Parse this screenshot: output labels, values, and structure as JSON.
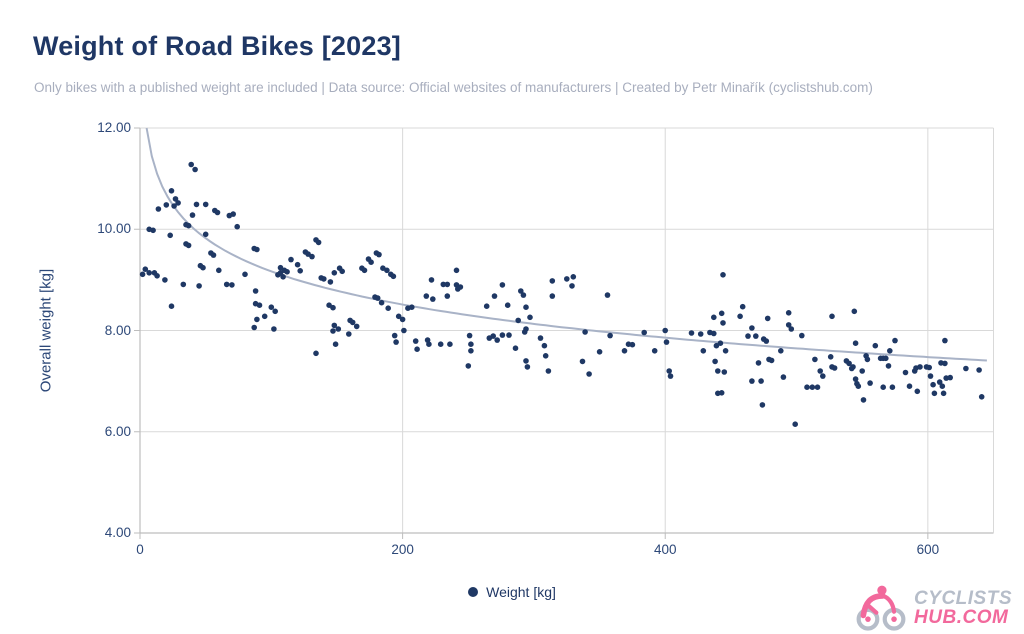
{
  "page": {
    "title": "Weight of Road Bikes [2023]",
    "subtitle": "Only bikes with a published weight are included | Data source: Official websites of manufacturers | Created by Petr Minařík (cyclistshub.com)"
  },
  "colors": {
    "title_navy": "#1f3765",
    "tick_label_navy": "#2d4878",
    "subtitle_gray": "#a8aebe",
    "point": "#1f3864",
    "trendline": "#a9b3c7",
    "gridline": "#d9d9d9",
    "axis_line": "#bdbdbd",
    "logo_gray": "#b6bdc9",
    "logo_pink": "#f2699c",
    "background": "#ffffff"
  },
  "branding": {
    "logo_line1": "CYCLISTS",
    "logo_line2": "HUB.COM"
  },
  "chart_data": {
    "type": "scatter",
    "title": "Weight of Road Bikes [2023]",
    "xlabel": "",
    "ylabel": "Overall weight [kg]",
    "xlim": [
      0,
      650
    ],
    "ylim": [
      4,
      12
    ],
    "grid": true,
    "x_ticks": [
      0,
      200,
      400,
      600
    ],
    "x_tick_labels": [
      "0",
      "200",
      "400",
      "600"
    ],
    "y_ticks": [
      12,
      10,
      8,
      6,
      4
    ],
    "y_tick_labels": [
      "12.00",
      "10.00",
      "8.00",
      "6.00",
      "4.00"
    ],
    "legend": {
      "label": "Weight [kg]",
      "position": "bottom-center"
    },
    "trendline": {
      "type": "logarithmic",
      "formula": "y = 13.52 - 0.945*ln(x)",
      "a": 13.52,
      "b": 0.945,
      "x_start": 5,
      "x_end": 648
    },
    "series": [
      {
        "name": "Weight [kg]",
        "points": [
          [
            7,
            10.0
          ],
          [
            10,
            9.98
          ],
          [
            14,
            10.4
          ],
          [
            20,
            10.48
          ],
          [
            24,
            10.76
          ],
          [
            27,
            10.6
          ],
          [
            29,
            10.52
          ],
          [
            26,
            10.46
          ],
          [
            23,
            9.88
          ],
          [
            2,
            9.11
          ],
          [
            4,
            9.21
          ],
          [
            7,
            9.14
          ],
          [
            11,
            9.14
          ],
          [
            13,
            9.08
          ],
          [
            19,
            9.0
          ],
          [
            24,
            8.48
          ],
          [
            39,
            11.28
          ],
          [
            42,
            11.18
          ],
          [
            35,
            10.09
          ],
          [
            37,
            10.07
          ],
          [
            40,
            10.28
          ],
          [
            43,
            10.49
          ],
          [
            50,
            10.49
          ],
          [
            57,
            10.37
          ],
          [
            59,
            10.33
          ],
          [
            68,
            10.27
          ],
          [
            71,
            10.3
          ],
          [
            74,
            10.05
          ],
          [
            50,
            9.9
          ],
          [
            35,
            9.71
          ],
          [
            37,
            9.68
          ],
          [
            54,
            9.53
          ],
          [
            56,
            9.49
          ],
          [
            46,
            9.28
          ],
          [
            48,
            9.24
          ],
          [
            60,
            9.19
          ],
          [
            33,
            8.91
          ],
          [
            45,
            8.88
          ],
          [
            66,
            8.91
          ],
          [
            70,
            8.9
          ],
          [
            80,
            9.11
          ],
          [
            87,
            9.62
          ],
          [
            89,
            9.6
          ],
          [
            88,
            8.78
          ],
          [
            88,
            8.53
          ],
          [
            91,
            8.5
          ],
          [
            95,
            8.28
          ],
          [
            89,
            8.22
          ],
          [
            100,
            8.46
          ],
          [
            102,
            8.03
          ],
          [
            87,
            8.06
          ],
          [
            103,
            8.38
          ],
          [
            107,
            9.24
          ],
          [
            110,
            9.19
          ],
          [
            107,
            9.14
          ],
          [
            105,
            9.1
          ],
          [
            109,
            9.06
          ],
          [
            112,
            9.16
          ],
          [
            115,
            9.4
          ],
          [
            120,
            9.3
          ],
          [
            122,
            9.18
          ],
          [
            126,
            9.55
          ],
          [
            128,
            9.51
          ],
          [
            131,
            9.46
          ],
          [
            134,
            9.79
          ],
          [
            136,
            9.74
          ],
          [
            138,
            9.04
          ],
          [
            134,
            7.55
          ],
          [
            140,
            9.02
          ],
          [
            145,
            8.96
          ],
          [
            148,
            9.14
          ],
          [
            152,
            9.23
          ],
          [
            154,
            9.17
          ],
          [
            144,
            8.5
          ],
          [
            147,
            8.45
          ],
          [
            147,
            7.99
          ],
          [
            149,
            7.73
          ],
          [
            148,
            8.1
          ],
          [
            151,
            8.03
          ],
          [
            159,
            7.93
          ],
          [
            160,
            8.2
          ],
          [
            162,
            8.16
          ],
          [
            165,
            8.08
          ],
          [
            169,
            9.23
          ],
          [
            171,
            9.19
          ],
          [
            174,
            9.41
          ],
          [
            176,
            9.35
          ],
          [
            180,
            9.53
          ],
          [
            182,
            9.5
          ],
          [
            185,
            9.23
          ],
          [
            188,
            9.19
          ],
          [
            191,
            9.11
          ],
          [
            193,
            9.07
          ],
          [
            179,
            8.66
          ],
          [
            181,
            8.64
          ],
          [
            184,
            8.55
          ],
          [
            189,
            8.44
          ],
          [
            194,
            7.9
          ],
          [
            195,
            7.77
          ],
          [
            197,
            8.28
          ],
          [
            200,
            8.22
          ],
          [
            201,
            8.0
          ],
          [
            204,
            8.44
          ],
          [
            207,
            8.46
          ],
          [
            210,
            7.79
          ],
          [
            211,
            7.63
          ],
          [
            218,
            8.68
          ],
          [
            219,
            7.81
          ],
          [
            220,
            7.73
          ],
          [
            222,
            9.0
          ],
          [
            223,
            8.62
          ],
          [
            229,
            7.73
          ],
          [
            231,
            8.91
          ],
          [
            234,
            8.91
          ],
          [
            234,
            8.68
          ],
          [
            236,
            7.73
          ],
          [
            241,
            9.19
          ],
          [
            241,
            8.9
          ],
          [
            244,
            8.86
          ],
          [
            242,
            8.82
          ],
          [
            250,
            7.3
          ],
          [
            251,
            7.9
          ],
          [
            252,
            7.73
          ],
          [
            252,
            7.6
          ],
          [
            264,
            8.48
          ],
          [
            266,
            7.85
          ],
          [
            269,
            7.89
          ],
          [
            270,
            8.68
          ],
          [
            272,
            7.81
          ],
          [
            276,
            8.9
          ],
          [
            276,
            7.91
          ],
          [
            280,
            8.5
          ],
          [
            281,
            7.91
          ],
          [
            286,
            7.65
          ],
          [
            288,
            8.2
          ],
          [
            290,
            8.78
          ],
          [
            292,
            8.7
          ],
          [
            293,
            7.97
          ],
          [
            294,
            8.46
          ],
          [
            294,
            7.4
          ],
          [
            295,
            7.28
          ],
          [
            297,
            8.26
          ],
          [
            294,
            8.03
          ],
          [
            305,
            7.85
          ],
          [
            308,
            7.7
          ],
          [
            309,
            7.5
          ],
          [
            311,
            7.2
          ],
          [
            314,
            8.98
          ],
          [
            314,
            8.68
          ],
          [
            325,
            9.02
          ],
          [
            329,
            8.88
          ],
          [
            330,
            9.06
          ],
          [
            337,
            7.39
          ],
          [
            339,
            7.97
          ],
          [
            342,
            7.14
          ],
          [
            350,
            7.58
          ],
          [
            356,
            8.7
          ],
          [
            358,
            7.9
          ],
          [
            369,
            7.6
          ],
          [
            372,
            7.73
          ],
          [
            375,
            7.72
          ],
          [
            384,
            7.96
          ],
          [
            392,
            7.6
          ],
          [
            400,
            8.0
          ],
          [
            401,
            7.77
          ],
          [
            403,
            7.2
          ],
          [
            404,
            7.1
          ],
          [
            420,
            7.95
          ],
          [
            427,
            7.93
          ],
          [
            429,
            7.6
          ],
          [
            434,
            7.96
          ],
          [
            437,
            7.94
          ],
          [
            438,
            7.39
          ],
          [
            437,
            8.26
          ],
          [
            439,
            7.7
          ],
          [
            440,
            7.2
          ],
          [
            440,
            6.76
          ],
          [
            442,
            7.75
          ],
          [
            444,
            9.1
          ],
          [
            443,
            8.34
          ],
          [
            444,
            8.15
          ],
          [
            446,
            7.6
          ],
          [
            445,
            7.18
          ],
          [
            443,
            6.77
          ],
          [
            457,
            8.28
          ],
          [
            459,
            8.47
          ],
          [
            463,
            7.89
          ],
          [
            466,
            8.05
          ],
          [
            466,
            7.0
          ],
          [
            469,
            7.89
          ],
          [
            471,
            7.36
          ],
          [
            473,
            7.0
          ],
          [
            474,
            6.53
          ],
          [
            475,
            7.83
          ],
          [
            477,
            7.79
          ],
          [
            478,
            8.24
          ],
          [
            479,
            7.43
          ],
          [
            481,
            7.41
          ],
          [
            488,
            7.6
          ],
          [
            490,
            7.08
          ],
          [
            494,
            8.35
          ],
          [
            494,
            8.11
          ],
          [
            496,
            8.03
          ],
          [
            499,
            6.15
          ],
          [
            504,
            7.9
          ],
          [
            508,
            6.88
          ],
          [
            512,
            6.88
          ],
          [
            514,
            7.43
          ],
          [
            516,
            6.88
          ],
          [
            518,
            7.2
          ],
          [
            520,
            7.1
          ],
          [
            526,
            7.48
          ],
          [
            527,
            8.28
          ],
          [
            527,
            7.28
          ],
          [
            529,
            7.26
          ],
          [
            538,
            7.4
          ],
          [
            540,
            7.35
          ],
          [
            542,
            7.25
          ],
          [
            543,
            7.28
          ],
          [
            544,
            8.38
          ],
          [
            545,
            7.75
          ],
          [
            545,
            7.04
          ],
          [
            546,
            6.95
          ],
          [
            547,
            6.9
          ],
          [
            550,
            7.2
          ],
          [
            551,
            6.63
          ],
          [
            553,
            7.5
          ],
          [
            554,
            7.43
          ],
          [
            556,
            6.96
          ],
          [
            560,
            7.7
          ],
          [
            564,
            7.45
          ],
          [
            566,
            7.45
          ],
          [
            568,
            7.45
          ],
          [
            566,
            6.88
          ],
          [
            570,
            7.3
          ],
          [
            571,
            7.6
          ],
          [
            573,
            6.88
          ],
          [
            575,
            7.8
          ],
          [
            583,
            7.17
          ],
          [
            586,
            6.9
          ],
          [
            590,
            7.2
          ],
          [
            591,
            7.26
          ],
          [
            592,
            6.8
          ],
          [
            594,
            7.28
          ],
          [
            599,
            7.28
          ],
          [
            601,
            7.27
          ],
          [
            602,
            7.1
          ],
          [
            604,
            6.93
          ],
          [
            605,
            6.76
          ],
          [
            609,
            6.98
          ],
          [
            610,
            7.36
          ],
          [
            611,
            6.9
          ],
          [
            612,
            6.76
          ],
          [
            613,
            7.8
          ],
          [
            613,
            7.35
          ],
          [
            614,
            7.06
          ],
          [
            617,
            7.07
          ],
          [
            629,
            7.25
          ],
          [
            639,
            7.22
          ],
          [
            641,
            6.69
          ]
        ]
      }
    ]
  }
}
